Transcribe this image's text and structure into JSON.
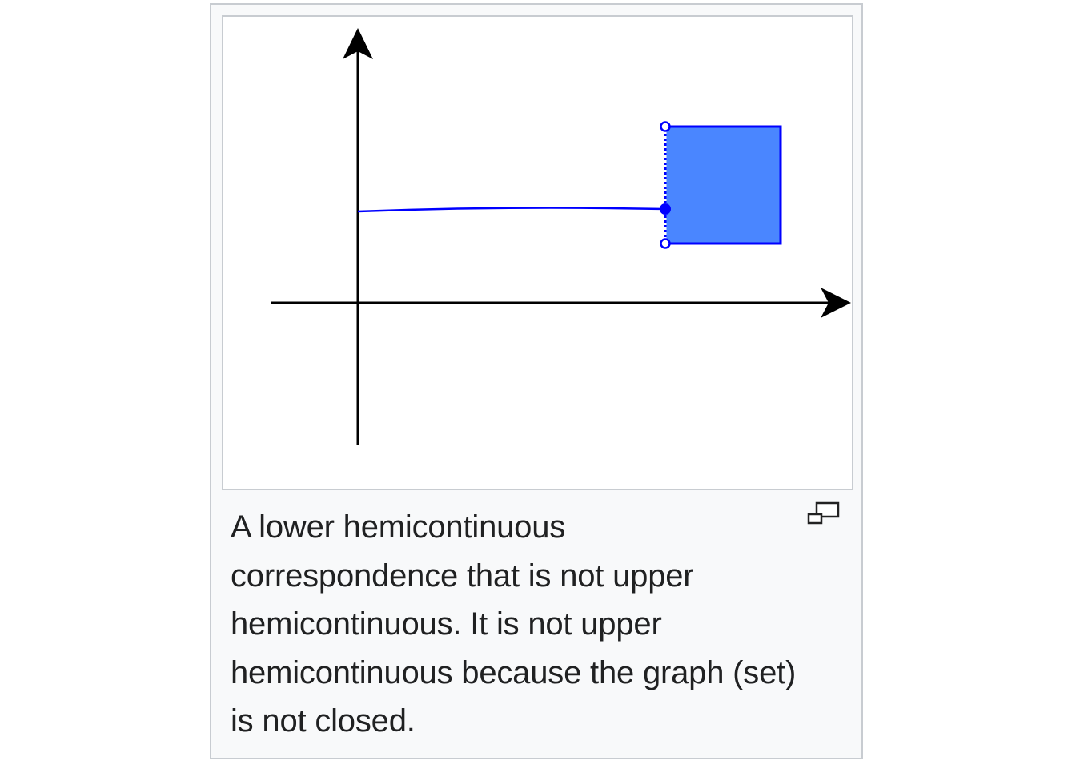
{
  "figure": {
    "caption": "A lower hemicontinuous correspondence that is not upper hemicontinuous. It is not upper hemicontinuous because the graph (set) is not closed.",
    "enlarge_icon": "magnify-clip-icon",
    "colors": {
      "frame_border": "#c8ccd1",
      "frame_background": "#f8f9fa",
      "axis": "#000000",
      "curve": "#0000ff",
      "region_fill": "#4a86ff",
      "region_stroke": "#0000ff"
    }
  }
}
